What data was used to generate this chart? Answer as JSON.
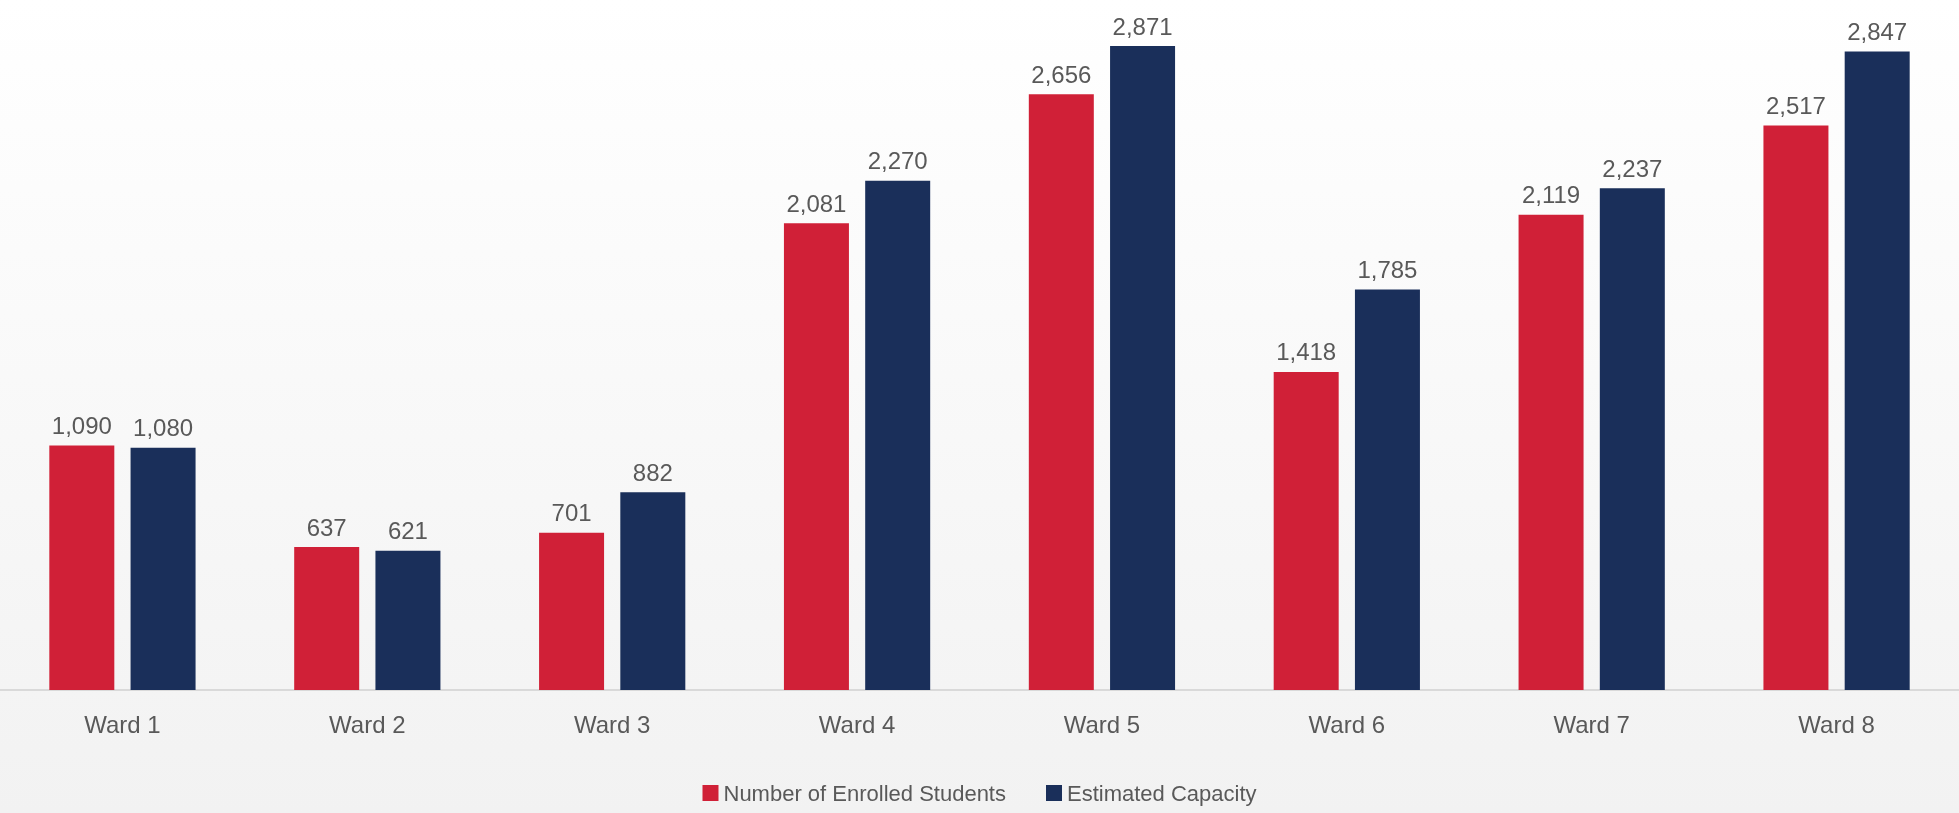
{
  "chart_data": {
    "type": "bar",
    "categories": [
      "Ward 1",
      "Ward 2",
      "Ward 3",
      "Ward 4",
      "Ward 5",
      "Ward 6",
      "Ward 7",
      "Ward 8"
    ],
    "series": [
      {
        "name": "Number of Enrolled Students",
        "color": "#d02037",
        "values": [
          1090,
          637,
          701,
          2081,
          2656,
          1418,
          2119,
          2517
        ],
        "value_labels": [
          "1,090",
          "637",
          "701",
          "2,081",
          "2,656",
          "1,418",
          "2,119",
          "2,517"
        ]
      },
      {
        "name": "Estimated Capacity",
        "color": "#1a2f5a",
        "values": [
          1080,
          621,
          882,
          2270,
          2871,
          1785,
          2237,
          2847
        ],
        "value_labels": [
          "1,080",
          "621",
          "882",
          "2,270",
          "2,871",
          "1,785",
          "2,237",
          "2,847"
        ]
      }
    ],
    "legend": "bottom"
  }
}
